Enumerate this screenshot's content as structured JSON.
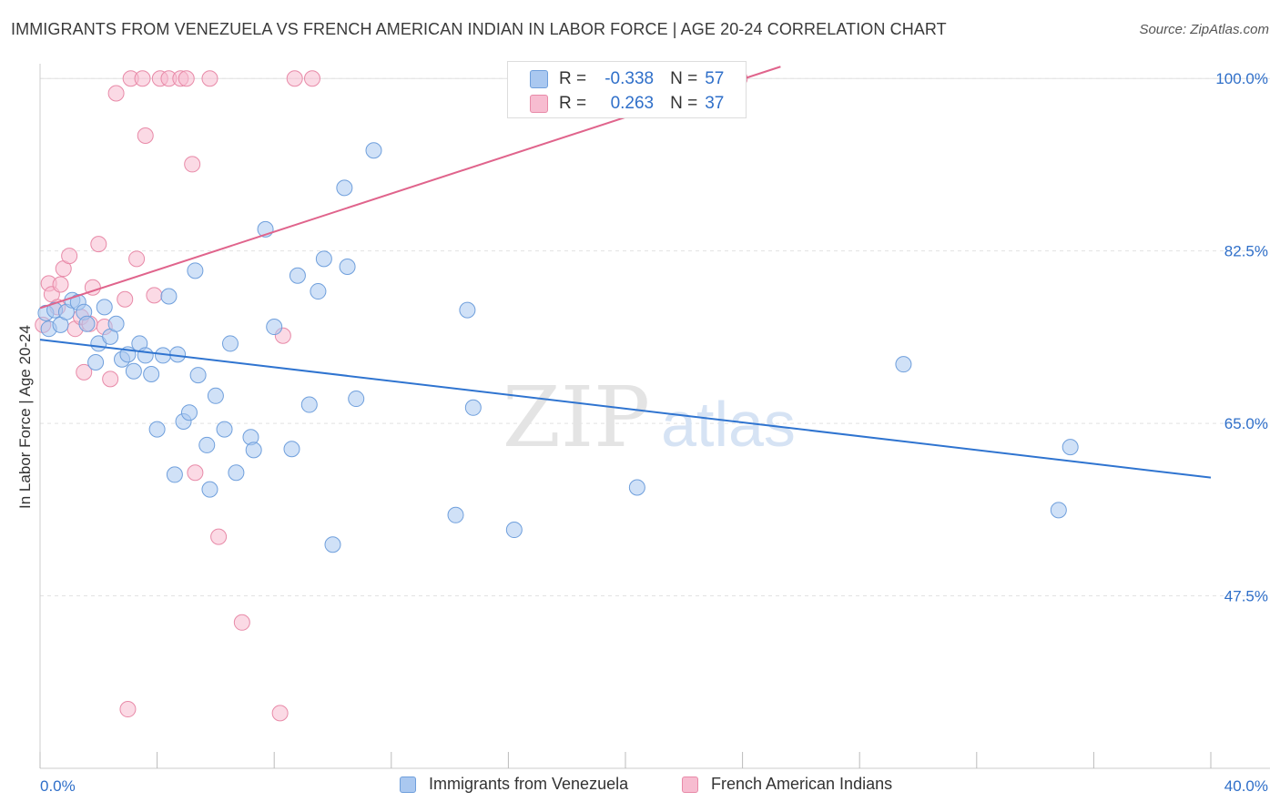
{
  "title": "IMMIGRANTS FROM VENEZUELA VS FRENCH AMERICAN INDIAN IN LABOR FORCE | AGE 20-24 CORRELATION CHART",
  "source": "Source: ZipAtlas.com",
  "watermark": {
    "zip": "ZIP",
    "atlas": "atlas"
  },
  "stats": {
    "r_label": "R =",
    "n_label": "N =",
    "rows": [
      {
        "r": "-0.338",
        "n": "57"
      },
      {
        "r": "0.263",
        "n": "37"
      }
    ]
  },
  "legend": {
    "series1": "Immigrants from Venezuela",
    "series2": "French American Indians"
  },
  "chart_data": {
    "type": "scatter",
    "title": "IMMIGRANTS FROM VENEZUELA VS FRENCH AMERICAN INDIAN IN LABOR FORCE | AGE 20-24 CORRELATION CHART",
    "xlabel": "",
    "ylabel": "In Labor Force | Age 20-24",
    "xlim": [
      0,
      40
    ],
    "ylim": [
      30,
      101.5
    ],
    "x_tick_labels": [
      "0.0%",
      "40.0%"
    ],
    "y_ticks": [
      47.5,
      65.0,
      82.5,
      100.0
    ],
    "y_tick_labels": [
      "47.5%",
      "65.0%",
      "82.5%",
      "100.0%"
    ],
    "grid": true,
    "legend_position": "bottom",
    "colors": {
      "series1_fill": "#aac8f0",
      "series1_stroke": "#6f9fdc",
      "series1_line": "#2f74d0",
      "series2_fill": "#f7bcd0",
      "series2_stroke": "#e88aa8",
      "series2_line": "#e0648c",
      "tick_label": "#2f6fc9"
    },
    "series": [
      {
        "name": "Immigrants from Venezuela",
        "r": -0.338,
        "n": 57,
        "trend": {
          "x": [
            0,
            40
          ],
          "y": [
            73.5,
            59.5
          ]
        },
        "points": [
          [
            0.2,
            76.2
          ],
          [
            0.3,
            74.6
          ],
          [
            0.5,
            76.5
          ],
          [
            0.7,
            75.0
          ],
          [
            0.9,
            76.3
          ],
          [
            1.1,
            77.5
          ],
          [
            1.3,
            77.3
          ],
          [
            1.5,
            76.3
          ],
          [
            1.6,
            75.1
          ],
          [
            1.9,
            71.2
          ],
          [
            2.0,
            73.1
          ],
          [
            2.2,
            76.8
          ],
          [
            2.4,
            73.8
          ],
          [
            2.6,
            75.1
          ],
          [
            2.8,
            71.5
          ],
          [
            3.0,
            72.0
          ],
          [
            3.2,
            70.3
          ],
          [
            3.4,
            73.1
          ],
          [
            3.6,
            71.9
          ],
          [
            3.8,
            70.0
          ],
          [
            4.0,
            64.4
          ],
          [
            4.2,
            71.9
          ],
          [
            4.4,
            77.9
          ],
          [
            4.6,
            59.8
          ],
          [
            4.7,
            72.0
          ],
          [
            4.9,
            65.2
          ],
          [
            5.1,
            66.1
          ],
          [
            5.3,
            80.5
          ],
          [
            5.4,
            69.9
          ],
          [
            5.7,
            62.8
          ],
          [
            5.8,
            58.3
          ],
          [
            6.0,
            67.8
          ],
          [
            6.3,
            64.4
          ],
          [
            6.5,
            73.1
          ],
          [
            6.7,
            60.0
          ],
          [
            7.2,
            63.6
          ],
          [
            7.3,
            62.3
          ],
          [
            7.7,
            84.7
          ],
          [
            8.0,
            74.8
          ],
          [
            8.6,
            62.4
          ],
          [
            8.8,
            80.0
          ],
          [
            9.2,
            66.9
          ],
          [
            9.5,
            78.4
          ],
          [
            9.7,
            81.7
          ],
          [
            10.0,
            52.7
          ],
          [
            10.4,
            88.9
          ],
          [
            10.5,
            80.9
          ],
          [
            10.8,
            67.5
          ],
          [
            11.4,
            92.7
          ],
          [
            14.2,
            55.7
          ],
          [
            14.6,
            76.5
          ],
          [
            14.8,
            66.6
          ],
          [
            16.2,
            54.2
          ],
          [
            20.4,
            58.5
          ],
          [
            29.5,
            71.0
          ],
          [
            34.8,
            56.2
          ],
          [
            35.2,
            62.6
          ]
        ]
      },
      {
        "name": "French American Indians",
        "r": 0.263,
        "n": 37,
        "trend": {
          "x": [
            0,
            25.3
          ],
          "y": [
            76.7,
            101.2
          ]
        },
        "points": [
          [
            0.1,
            75.0
          ],
          [
            0.3,
            79.2
          ],
          [
            0.4,
            78.1
          ],
          [
            0.6,
            76.8
          ],
          [
            0.7,
            79.1
          ],
          [
            0.8,
            80.7
          ],
          [
            1.0,
            82.0
          ],
          [
            1.2,
            74.6
          ],
          [
            1.4,
            75.8
          ],
          [
            1.5,
            70.2
          ],
          [
            1.7,
            75.1
          ],
          [
            1.8,
            78.8
          ],
          [
            2.0,
            83.2
          ],
          [
            2.2,
            74.8
          ],
          [
            2.4,
            69.5
          ],
          [
            2.6,
            98.5
          ],
          [
            2.9,
            77.6
          ],
          [
            3.1,
            100.0
          ],
          [
            3.3,
            81.7
          ],
          [
            3.5,
            100.0
          ],
          [
            3.6,
            94.2
          ],
          [
            3.9,
            78.0
          ],
          [
            4.1,
            100.0
          ],
          [
            4.4,
            100.0
          ],
          [
            4.8,
            100.0
          ],
          [
            5.0,
            100.0
          ],
          [
            5.2,
            91.3
          ],
          [
            5.3,
            60.0
          ],
          [
            5.8,
            100.0
          ],
          [
            6.1,
            53.5
          ],
          [
            6.9,
            44.8
          ],
          [
            8.3,
            73.9
          ],
          [
            8.7,
            100.0
          ],
          [
            9.3,
            100.0
          ],
          [
            3.0,
            36.0
          ],
          [
            8.2,
            35.6
          ],
          [
            23.9,
            100.0
          ]
        ]
      }
    ]
  }
}
